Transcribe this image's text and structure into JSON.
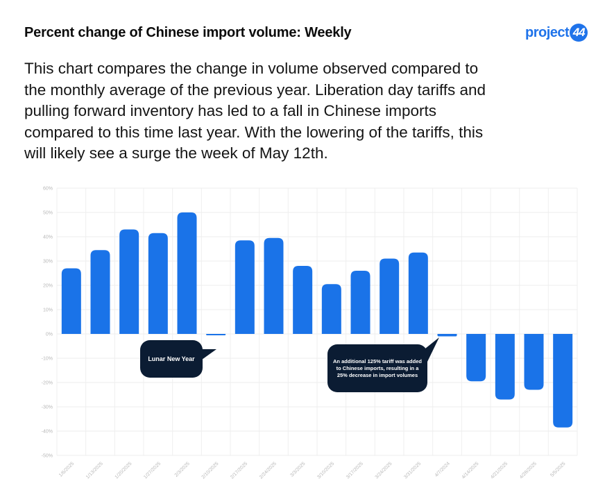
{
  "header": {
    "title": "Percent change of Chinese import volume: Weekly",
    "logo_text": "project",
    "logo_badge": "44"
  },
  "description": "This chart compares the change in volume observed compared to the monthly average of the previous year. Liberation day tariffs and pulling forward inventory has led to a fall in Chinese imports compared to this time last year. With the lowering of the tariffs, this will likely see a surge the week of May 12th.",
  "chart_data": {
    "type": "bar",
    "categories": [
      "1/6/2025",
      "1/13/2025",
      "1/20/2025",
      "1/27/2025",
      "2/3/2025",
      "2/10/2025",
      "2/17/2025",
      "2/24/2025",
      "3/3/2025",
      "3/10/2025",
      "3/17/2025",
      "3/24/2025",
      "3/31/2025",
      "4/7/2024",
      "4/14/2025",
      "4/21/2025",
      "4/28/2025",
      "5/5/2025"
    ],
    "values": [
      27,
      34.5,
      43,
      41.5,
      50,
      -0.5,
      38.5,
      39.5,
      28,
      20.5,
      26,
      31,
      33.5,
      -1,
      -19.5,
      -27,
      -23,
      -38.5
    ],
    "ylim": [
      -50,
      60
    ],
    "yticks": [
      "-50%",
      "-40%",
      "-30%",
      "-20%",
      "-10%",
      "0%",
      "10%",
      "20%",
      "30%",
      "40%",
      "50%",
      "60%"
    ],
    "ytick_values": [
      -50,
      -40,
      -30,
      -20,
      -10,
      0,
      10,
      20,
      30,
      40,
      50,
      60
    ],
    "bar_color": "#1a73e8",
    "grid": true,
    "annotations": [
      {
        "text": "Lunar New Year",
        "category": "2/10/2025"
      },
      {
        "text": "An additional 125% tariff was added to Chinese imports, resulting in a 25% decrease in import volumes",
        "category": "4/7/2024"
      }
    ]
  }
}
